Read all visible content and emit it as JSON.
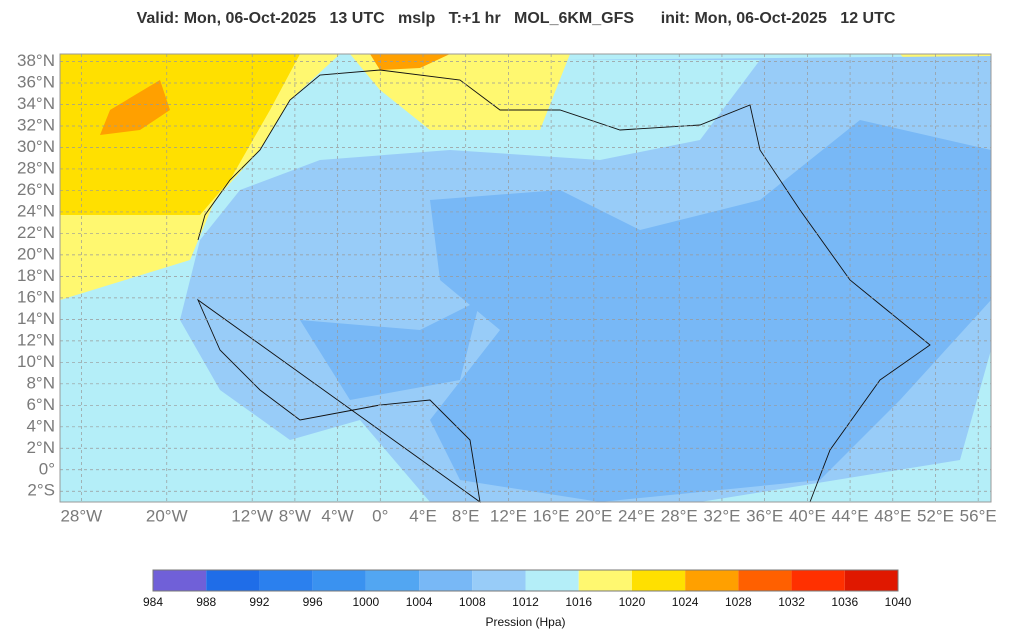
{
  "header": {
    "title": "Valid: Mon, 06-Oct-2025   13 UTC   mslp   T:+1 hr   MOL_6KM_GFS      init: Mon, 06-Oct-2025   12 UTC"
  },
  "map": {
    "xlim": [
      -30,
      57.2
    ],
    "ylim": [
      -3,
      38.7
    ],
    "grid": true,
    "xticks": [
      {
        "value": -28,
        "label": "28°W"
      },
      {
        "value": -20,
        "label": "20°W"
      },
      {
        "value": -12,
        "label": "12°W"
      },
      {
        "value": -8,
        "label": "8°W"
      },
      {
        "value": -4,
        "label": "4°W"
      },
      {
        "value": 0,
        "label": "0°"
      },
      {
        "value": 4,
        "label": "4°E"
      },
      {
        "value": 8,
        "label": "8°E"
      },
      {
        "value": 12,
        "label": "12°E"
      },
      {
        "value": 16,
        "label": "16°E"
      },
      {
        "value": 20,
        "label": "20°E"
      },
      {
        "value": 24,
        "label": "24°E"
      },
      {
        "value": 28,
        "label": "28°E"
      },
      {
        "value": 32,
        "label": "32°E"
      },
      {
        "value": 36,
        "label": "36°E"
      },
      {
        "value": 40,
        "label": "40°E"
      },
      {
        "value": 44,
        "label": "44°E"
      },
      {
        "value": 48,
        "label": "48°E"
      },
      {
        "value": 52,
        "label": "52°E"
      },
      {
        "value": 56,
        "label": "56°E"
      }
    ],
    "yticks": [
      {
        "value": 38,
        "label": "38°N"
      },
      {
        "value": 36,
        "label": "36°N"
      },
      {
        "value": 34,
        "label": "34°N"
      },
      {
        "value": 32,
        "label": "32°N"
      },
      {
        "value": 30,
        "label": "30°N"
      },
      {
        "value": 28,
        "label": "28°N"
      },
      {
        "value": 26,
        "label": "26°N"
      },
      {
        "value": 24,
        "label": "24°N"
      },
      {
        "value": 22,
        "label": "22°N"
      },
      {
        "value": 20,
        "label": "20°N"
      },
      {
        "value": 18,
        "label": "18°N"
      },
      {
        "value": 16,
        "label": "16°N"
      },
      {
        "value": 14,
        "label": "14°N"
      },
      {
        "value": 12,
        "label": "12°N"
      },
      {
        "value": 10,
        "label": "10°N"
      },
      {
        "value": 8,
        "label": "8°N"
      },
      {
        "value": 6,
        "label": "6°N"
      },
      {
        "value": 4,
        "label": "4°N"
      },
      {
        "value": 2,
        "label": "2°N"
      },
      {
        "value": 0,
        "label": "0°"
      },
      {
        "value": -2,
        "label": "2°S"
      }
    ]
  },
  "colorbar": {
    "label": "Pression (Hpa)",
    "levels": [
      984,
      988,
      992,
      996,
      1000,
      1004,
      1008,
      1012,
      1016,
      1020,
      1024,
      1028,
      1032,
      1036,
      1040
    ],
    "colors": [
      "#7060d8",
      "#1f6de8",
      "#2b80ee",
      "#3a92f0",
      "#52a6f2",
      "#78b8f6",
      "#98ccf8",
      "#b4eef8",
      "#fff870",
      "#ffe000",
      "#ffa000",
      "#ff6000",
      "#ff3000",
      "#e01800"
    ]
  }
}
